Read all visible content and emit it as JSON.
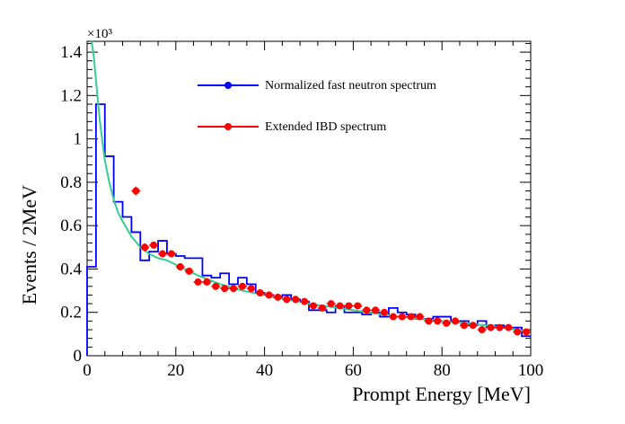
{
  "chart_data": {
    "type": "line",
    "xlabel": "Prompt Energy [MeV]",
    "ylabel": "Events / 2MeV",
    "y_exponent_label": "×10³",
    "xlim": [
      0,
      100
    ],
    "ylim": [
      0,
      1450
    ],
    "xticks": [
      0,
      20,
      40,
      60,
      80,
      100
    ],
    "xtick_labels": [
      "0",
      "20",
      "40",
      "60",
      "80",
      "100"
    ],
    "yticks": [
      0,
      200,
      400,
      600,
      800,
      1000,
      1200,
      1400
    ],
    "ytick_labels": [
      "0",
      "0.2",
      "0.4",
      "0.6",
      "0.8",
      "1",
      "1.2",
      "1.4"
    ],
    "grid": false,
    "legend_position": "top-right",
    "series": [
      {
        "name": "Normalized fast neutron spectrum",
        "style": "histogram",
        "color": "#0000ff",
        "bin_width": 2,
        "bin_edges_start": 0,
        "values": [
          410,
          1160,
          920,
          710,
          640,
          570,
          440,
          480,
          530,
          470,
          460,
          450,
          450,
          370,
          360,
          380,
          330,
          360,
          330,
          290,
          280,
          270,
          280,
          260,
          250,
          210,
          210,
          200,
          230,
          200,
          200,
          190,
          200,
          180,
          220,
          200,
          190,
          170,
          170,
          180,
          180,
          160,
          160,
          140,
          160,
          130,
          140,
          130,
          130,
          90
        ]
      },
      {
        "name": "Extended IBD spectrum",
        "style": "points",
        "color": "#ff0000",
        "x": [
          11,
          13,
          15,
          17,
          19,
          21,
          23,
          25,
          27,
          29,
          31,
          33,
          35,
          37,
          39,
          41,
          43,
          45,
          47,
          49,
          51,
          53,
          55,
          57,
          59,
          61,
          63,
          65,
          67,
          69,
          71,
          73,
          75,
          77,
          79,
          81,
          83,
          85,
          87,
          89,
          91,
          93,
          95,
          97,
          99
        ],
        "y": [
          760,
          500,
          510,
          470,
          470,
          410,
          390,
          340,
          340,
          320,
          310,
          310,
          320,
          310,
          290,
          280,
          270,
          260,
          260,
          250,
          230,
          220,
          240,
          230,
          230,
          230,
          210,
          210,
          200,
          180,
          180,
          180,
          180,
          160,
          160,
          150,
          160,
          140,
          140,
          120,
          130,
          130,
          130,
          110,
          110
        ],
        "y_err": [
          20,
          18,
          15,
          15,
          14,
          13,
          13,
          12,
          12,
          12,
          11,
          11,
          11,
          11,
          11,
          10,
          10,
          10,
          10,
          10,
          10,
          10,
          10,
          10,
          10,
          10,
          10,
          10,
          10,
          9,
          9,
          9,
          9,
          9,
          9,
          9,
          9,
          9,
          9,
          9,
          9,
          9,
          9,
          9,
          9
        ]
      },
      {
        "style": "fit-curve",
        "color": "#33cc99",
        "x": [
          1,
          1.5,
          2,
          2.5,
          3,
          4,
          5,
          6,
          7,
          8,
          10,
          12,
          14,
          16,
          18,
          20,
          25,
          30,
          35,
          40,
          50,
          60,
          70,
          80,
          90,
          100
        ],
        "y": [
          1460,
          1380,
          1270,
          1160,
          1060,
          900,
          800,
          720,
          660,
          620,
          550,
          500,
          470,
          450,
          440,
          420,
          370,
          330,
          300,
          280,
          240,
          210,
          180,
          160,
          140,
          110
        ]
      }
    ]
  }
}
